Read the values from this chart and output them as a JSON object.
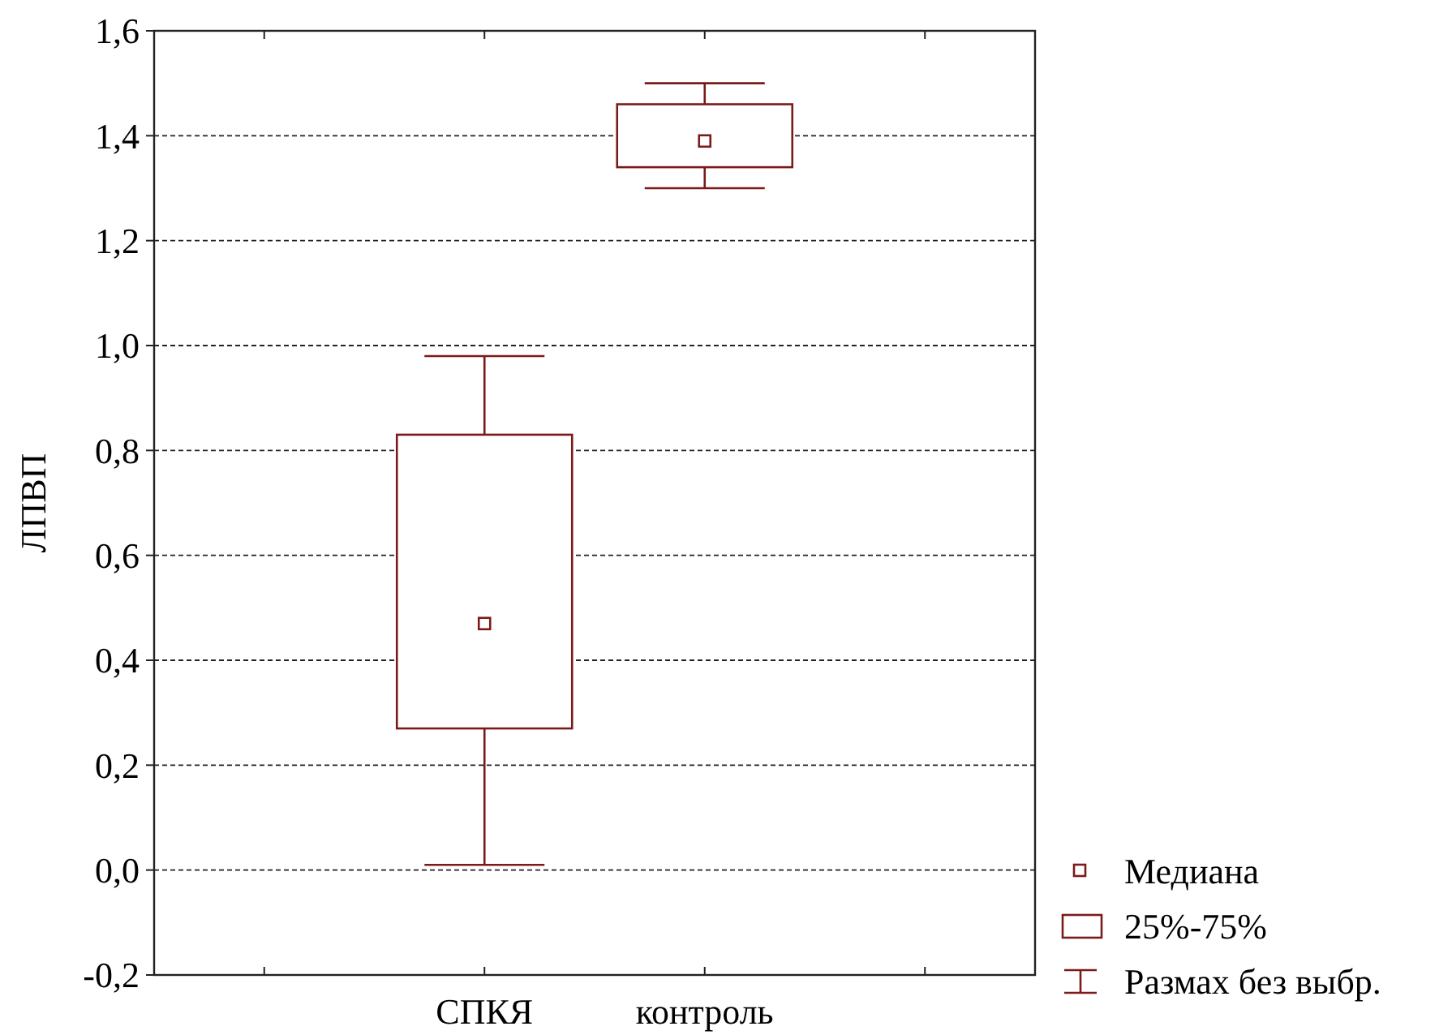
{
  "chart_data": {
    "type": "box",
    "ylabel": "ЛПВП",
    "categories": [
      "СПКЯ",
      "контроль"
    ],
    "color": "#7b1a1a",
    "boxes": [
      {
        "low": 0.01,
        "q1": 0.27,
        "median": 0.47,
        "q3": 0.83,
        "high": 0.98
      },
      {
        "low": 1.3,
        "q1": 1.34,
        "median": 1.39,
        "q3": 1.46,
        "high": 1.5
      }
    ],
    "ylim": [
      -0.2,
      1.6
    ],
    "yticks": [
      {
        "value": -0.2,
        "label": "-0,2"
      },
      {
        "value": 0,
        "label": "0,0"
      },
      {
        "value": 0.2,
        "label": "0,2"
      },
      {
        "value": 0.4,
        "label": "0,4"
      },
      {
        "value": 0.6,
        "label": "0,6"
      },
      {
        "value": 0.8,
        "label": "0,8"
      },
      {
        "value": 1,
        "label": "1,0"
      },
      {
        "value": 1.2,
        "label": "1,2"
      },
      {
        "value": 1.4,
        "label": "1,4"
      },
      {
        "value": 1.6,
        "label": "1,6"
      }
    ],
    "grid": "y",
    "annotations": [
      "Медиана",
      "25%-75%",
      "Размах без выбр."
    ]
  }
}
